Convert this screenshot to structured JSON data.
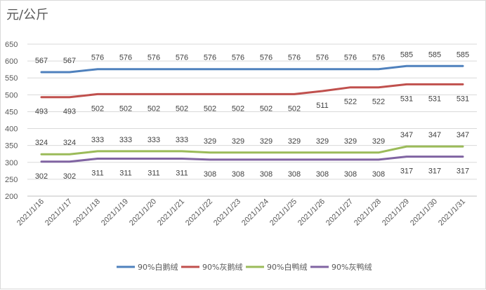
{
  "unit_label": "元/公斤",
  "chart_data": {
    "type": "line",
    "categories": [
      "2021/1/16",
      "2021/1/17",
      "2021/1/18",
      "2021/1/19",
      "2021/1/20",
      "2021/1/21",
      "2021/1/22",
      "2021/1/23",
      "2021/1/24",
      "2021/1/25",
      "2021/1/26",
      "2021/1/27",
      "2021/1/28",
      "2021/1/29",
      "2021/1/30",
      "2021/1/31"
    ],
    "ylim": [
      200,
      650
    ],
    "yticks": [
      200,
      250,
      300,
      350,
      400,
      450,
      500,
      550,
      600,
      650
    ],
    "grid": true,
    "legend_position": "bottom",
    "series": [
      {
        "name": "90%白鹅绒",
        "color": "#4f81bd",
        "label_position": "above",
        "values": [
          567,
          567,
          576,
          576,
          576,
          576,
          576,
          576,
          576,
          576,
          576,
          576,
          576,
          585,
          585,
          585
        ]
      },
      {
        "name": "90%灰鹅绒",
        "color": "#c0504d",
        "label_position": "below",
        "values": [
          493,
          493,
          502,
          502,
          502,
          502,
          502,
          502,
          502,
          502,
          511,
          522,
          522,
          531,
          531,
          531
        ]
      },
      {
        "name": "90%白鸭绒",
        "color": "#9bbb59",
        "label_position": "above",
        "values": [
          324,
          324,
          333,
          333,
          333,
          333,
          329,
          329,
          329,
          329,
          329,
          329,
          329,
          347,
          347,
          347
        ]
      },
      {
        "name": "90%灰鸭绒",
        "color": "#8064a2",
        "label_position": "below",
        "values": [
          302,
          302,
          311,
          311,
          311,
          311,
          308,
          308,
          308,
          308,
          308,
          308,
          308,
          317,
          317,
          317
        ]
      }
    ]
  }
}
